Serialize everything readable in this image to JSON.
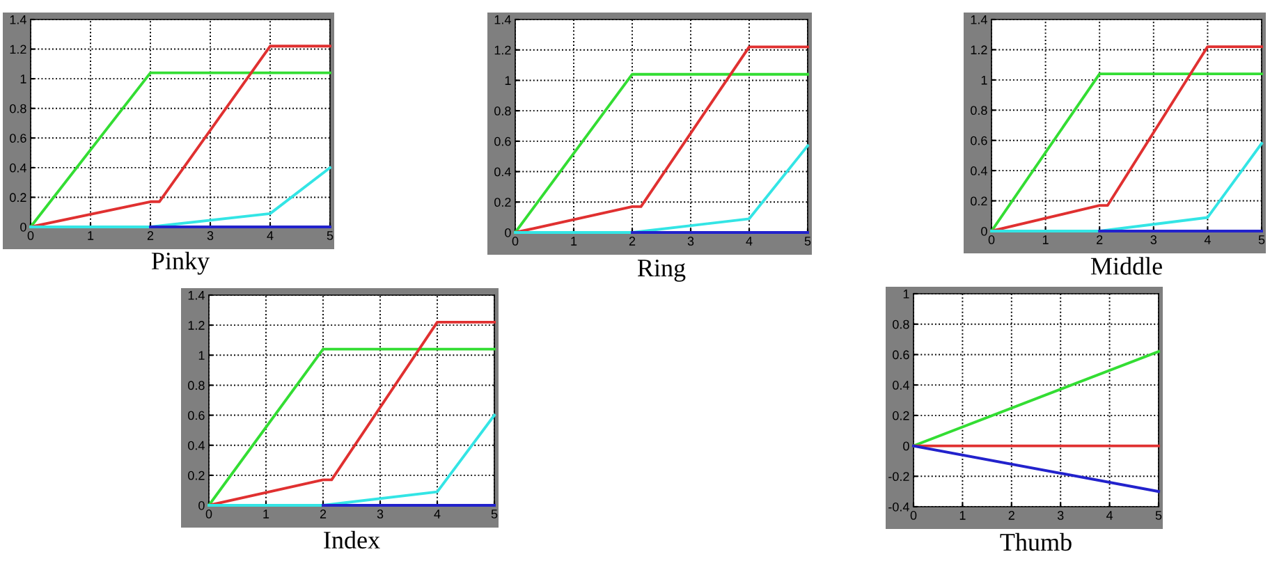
{
  "chart_data": [
    {
      "type": "line",
      "title": "Pinky",
      "xlim": [
        0,
        5
      ],
      "ylim": [
        0,
        1.4
      ],
      "xticks": [
        0,
        1,
        2,
        3,
        4,
        5
      ],
      "yticks": [
        0,
        0.2,
        0.4,
        0.6,
        0.8,
        1,
        1.2,
        1.4
      ],
      "grid": true,
      "line_style": "solid",
      "series": [
        {
          "color": "#33dd33",
          "x": [
            0,
            2,
            5
          ],
          "values": [
            0,
            1.04,
            1.04
          ]
        },
        {
          "color": "#e03030",
          "x": [
            0,
            2,
            2.15,
            4,
            5
          ],
          "values": [
            0,
            0.17,
            0.17,
            1.22,
            1.22
          ]
        },
        {
          "color": "#33e5e5",
          "x": [
            0,
            2,
            4,
            5
          ],
          "values": [
            0,
            0,
            0.09,
            0.4
          ]
        },
        {
          "color": "#2222cc",
          "x": [
            2,
            5
          ],
          "values": [
            0,
            0
          ]
        }
      ]
    },
    {
      "type": "line",
      "title": "Ring",
      "xlim": [
        0,
        5
      ],
      "ylim": [
        0,
        1.4
      ],
      "xticks": [
        0,
        1,
        2,
        3,
        4,
        5
      ],
      "yticks": [
        0,
        0.2,
        0.4,
        0.6,
        0.8,
        1,
        1.2,
        1.4
      ],
      "grid": true,
      "line_style": "solid",
      "series": [
        {
          "color": "#33dd33",
          "x": [
            0,
            2,
            5
          ],
          "values": [
            0,
            1.04,
            1.04
          ]
        },
        {
          "color": "#e03030",
          "x": [
            0,
            2,
            2.15,
            4,
            5
          ],
          "values": [
            0,
            0.17,
            0.17,
            1.22,
            1.22
          ]
        },
        {
          "color": "#33e5e5",
          "x": [
            0,
            2,
            4,
            5
          ],
          "values": [
            0,
            0,
            0.09,
            0.57
          ]
        },
        {
          "color": "#2222cc",
          "x": [
            2,
            5
          ],
          "values": [
            0,
            0
          ]
        }
      ]
    },
    {
      "type": "line",
      "title": "Middle",
      "xlim": [
        0,
        5
      ],
      "ylim": [
        0,
        1.4
      ],
      "xticks": [
        0,
        1,
        2,
        3,
        4,
        5
      ],
      "yticks": [
        0,
        0.2,
        0.4,
        0.6,
        0.8,
        1,
        1.2,
        1.4
      ],
      "grid": true,
      "line_style": "solid",
      "series": [
        {
          "color": "#33dd33",
          "x": [
            0,
            2,
            5
          ],
          "values": [
            0,
            1.04,
            1.04
          ]
        },
        {
          "color": "#e03030",
          "x": [
            0,
            2,
            2.15,
            4,
            5
          ],
          "values": [
            0,
            0.17,
            0.17,
            1.22,
            1.22
          ]
        },
        {
          "color": "#33e5e5",
          "x": [
            0,
            2,
            4,
            5
          ],
          "values": [
            0,
            0,
            0.09,
            0.58
          ]
        },
        {
          "color": "#2222cc",
          "x": [
            2,
            5
          ],
          "values": [
            0,
            0
          ]
        }
      ]
    },
    {
      "type": "line",
      "title": "Index",
      "xlim": [
        0,
        5
      ],
      "ylim": [
        0,
        1.4
      ],
      "xticks": [
        0,
        1,
        2,
        3,
        4,
        5
      ],
      "yticks": [
        0,
        0.2,
        0.4,
        0.6,
        0.8,
        1,
        1.2,
        1.4
      ],
      "grid": true,
      "line_style": "solid",
      "series": [
        {
          "color": "#33dd33",
          "x": [
            0,
            2,
            5
          ],
          "values": [
            0,
            1.04,
            1.04
          ]
        },
        {
          "color": "#e03030",
          "x": [
            0,
            2,
            2.15,
            4,
            5
          ],
          "values": [
            0,
            0.17,
            0.17,
            1.22,
            1.22
          ]
        },
        {
          "color": "#33e5e5",
          "x": [
            0,
            2,
            4,
            5
          ],
          "values": [
            0,
            0,
            0.09,
            0.6
          ]
        },
        {
          "color": "#2222cc",
          "x": [
            2,
            5
          ],
          "values": [
            0,
            0
          ]
        }
      ]
    },
    {
      "type": "line",
      "title": "Thumb",
      "xlim": [
        0,
        5
      ],
      "ylim": [
        -0.4,
        1
      ],
      "xticks": [
        0,
        1,
        2,
        3,
        4,
        5
      ],
      "yticks": [
        -0.4,
        -0.2,
        0,
        0.2,
        0.4,
        0.6,
        0.8,
        1
      ],
      "grid": true,
      "line_style": "solid",
      "series": [
        {
          "color": "#33dd33",
          "x": [
            0,
            5
          ],
          "values": [
            0,
            0.62
          ]
        },
        {
          "color": "#e03030",
          "x": [
            0,
            5
          ],
          "values": [
            0,
            0
          ]
        },
        {
          "color": "#2222cc",
          "x": [
            0,
            5
          ],
          "values": [
            0,
            -0.3
          ]
        }
      ]
    }
  ]
}
